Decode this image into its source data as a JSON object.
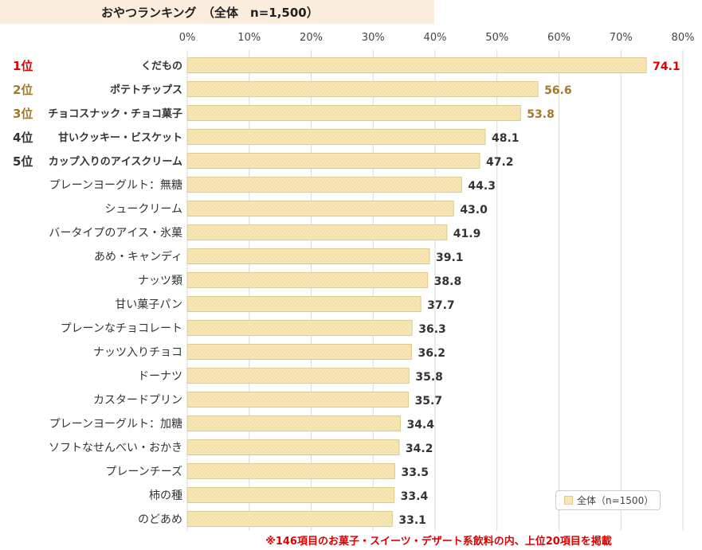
{
  "chart_data": {
    "type": "bar",
    "orientation": "horizontal",
    "title": "おやつランキング　（全体　n=1,500）",
    "xlim": [
      0,
      80
    ],
    "ticks": [
      "0%",
      "10%",
      "20%",
      "30%",
      "40%",
      "50%",
      "60%",
      "70%",
      "80%"
    ],
    "grid": true,
    "legend_position": "bottom-right",
    "categories": [
      "くだもの",
      "ポテトチップス",
      "チョコスナック・チョコ菓子",
      "甘いクッキー・ビスケット",
      "カップ入りのアイスクリーム",
      "プレーンヨーグルト：無糖",
      "シュークリーム",
      "バータイプのアイス・氷菓",
      "あめ・キャンディ",
      "ナッツ類",
      "甘い菓子パン",
      "プレーンなチョコレート",
      "ナッツ入りチョコ",
      "ドーナツ",
      "カスタードプリン",
      "プレーンヨーグルト：加糖",
      "ソフトなせんべい・おかき",
      "プレーンチーズ",
      "柿の種",
      "のどあめ"
    ],
    "ranks": [
      "1位",
      "2位",
      "3位",
      "4位",
      "5位"
    ],
    "series": [
      {
        "name": "全体（n=1500）",
        "values": [
          74.1,
          56.6,
          53.8,
          48.1,
          47.2,
          44.3,
          43.0,
          41.9,
          39.1,
          38.8,
          37.7,
          36.3,
          36.2,
          35.8,
          35.7,
          34.4,
          34.2,
          33.5,
          33.4,
          33.1
        ],
        "labels": [
          "74.1",
          "56.6",
          "53.8",
          "48.1",
          "47.2",
          "44.3",
          "43.0",
          "41.9",
          "39.1",
          "38.8",
          "37.7",
          "36.3",
          "36.2",
          "35.8",
          "35.7",
          "34.4",
          "34.2",
          "33.5",
          "33.4",
          "33.1"
        ]
      }
    ],
    "colors": {
      "bar_fill": "#f8e7b6",
      "bar_stroke": "#e0c991",
      "grid": "#d9d9d9",
      "rank1": "#e00000",
      "rank2_3": "#a5782a",
      "rank_other": "#333333",
      "label_default": "#333333"
    }
  },
  "legend": {
    "label": "全体（n=1500）"
  },
  "footnote": "※146項目のお菓子・スイーツ・デザート系飲料の内、上位20項目を掲載"
}
